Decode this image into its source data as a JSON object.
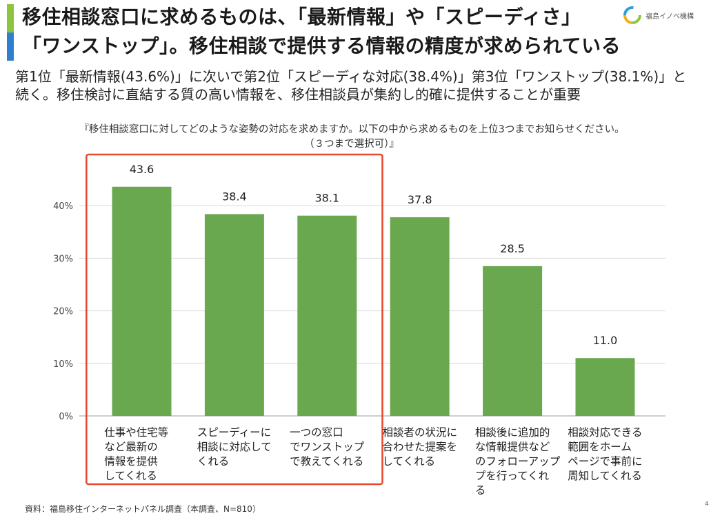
{
  "title": {
    "line1": "移住相談窓口に求めるものは、「最新情報」や「スピーディさ」",
    "line2": "「ワンストップ」。移住相談で提供する情報の精度が求められている"
  },
  "logo": {
    "text": "福島イノベ機構"
  },
  "subtitle": "第1位「最新情報(43.6%)」に次いで第2位「スピーディな対応(38.4%)」第3位「ワンストップ(38.1%)」と続く。移住検討に直結する質の高い情報を、移住相談員が集約し的確に提供することが重要",
  "question": "『移住相談窓口に対してどのような姿勢の対応を求めますか。以下の中から求めるものを上位3つまでお知らせください。（３つまで選択可）』",
  "source": "資料：福島移住インターネットパネル調査（本調査、N=810）",
  "page_number": "4",
  "colors": {
    "bar": "#6aa84f",
    "highlight_box": "#e8472a",
    "grid": "#d9d9d9"
  },
  "chart_data": {
    "type": "bar",
    "categories": [
      "仕事や住宅等など最新の情報を提供してくれる",
      "スピーディーに相談に対応してくれる",
      "一つの窓口でワンストップで教えてくれる",
      "相談者の状況に合わせた提案をしてくれる",
      "相談後に追加的な情報提供などのフォローアップを行ってくれる",
      "相談対応できる範囲をホームページで事前に周知してくれる"
    ],
    "category_lines": [
      [
        "仕事や住宅等",
        "など最新の",
        "情報を提供",
        "してくれる"
      ],
      [
        "スピーディーに",
        "相談に対応して",
        "くれる"
      ],
      [
        "一つの窓口",
        "でワンストップ",
        "で教えてくれる"
      ],
      [
        "相談者の状況に",
        "合わせた提案を",
        "してくれる"
      ],
      [
        "相談後に追加的",
        "な情報提供など",
        "のフォローアップ",
        "プを行ってくれ",
        "る"
      ],
      [
        "相談対応できる",
        "範囲をホーム",
        "ページで事前に",
        "周知してくれる"
      ]
    ],
    "values": [
      43.6,
      38.4,
      38.1,
      37.8,
      28.5,
      11.0
    ],
    "value_labels": [
      "43.6",
      "38.4",
      "38.1",
      "37.8",
      "28.5",
      "11.0"
    ],
    "yticks": [
      0,
      10,
      20,
      30,
      40
    ],
    "ytick_labels": [
      "0%",
      "10%",
      "20%",
      "30%",
      "40%"
    ],
    "ylim": [
      0,
      50
    ],
    "grid": true,
    "highlighted_top": 3
  }
}
